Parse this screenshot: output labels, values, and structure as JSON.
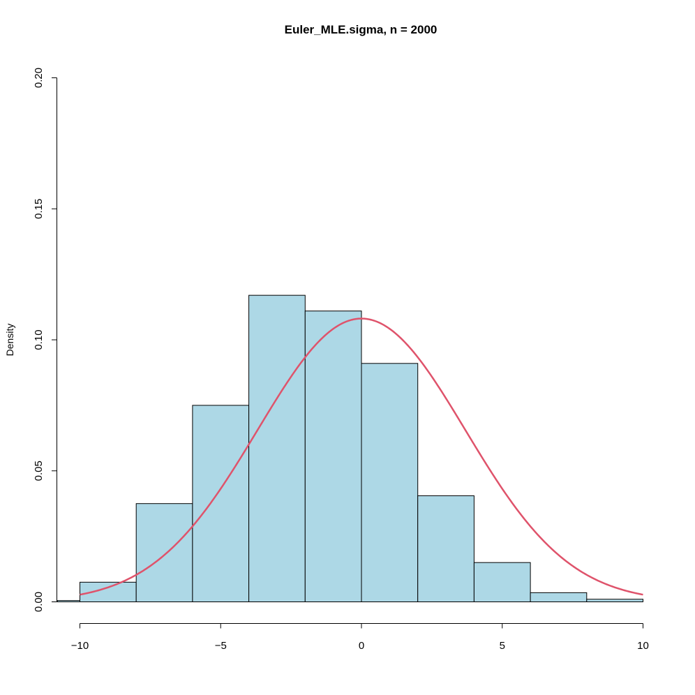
{
  "chart_data": {
    "type": "bar",
    "subtype": "histogram",
    "title": "Euler_MLE.sigma, n = 2000",
    "xlabel": "",
    "ylabel": "Density",
    "xlim": [
      -10.8,
      10
    ],
    "ylim": [
      0,
      0.2
    ],
    "x_ticks": [
      -10,
      -5,
      0,
      5,
      10
    ],
    "x_tick_labels": [
      "−10",
      "−5",
      "0",
      "5",
      "10"
    ],
    "y_ticks": [
      0,
      0.05,
      0.1,
      0.15,
      0.2
    ],
    "y_tick_labels": [
      "0.00",
      "0.05",
      "0.10",
      "0.15",
      "0.20"
    ],
    "bins": [
      {
        "x0": -12,
        "x1": -10,
        "density": 0.0005
      },
      {
        "x0": -10,
        "x1": -8,
        "density": 0.0075
      },
      {
        "x0": -8,
        "x1": -6,
        "density": 0.0375
      },
      {
        "x0": -6,
        "x1": -4,
        "density": 0.075
      },
      {
        "x0": -4,
        "x1": -2,
        "density": 0.117
      },
      {
        "x0": -2,
        "x1": 0,
        "density": 0.111
      },
      {
        "x0": 0,
        "x1": 2,
        "density": 0.091
      },
      {
        "x0": 2,
        "x1": 4,
        "density": 0.0405
      },
      {
        "x0": 4,
        "x1": 6,
        "density": 0.015
      },
      {
        "x0": 6,
        "x1": 8,
        "density": 0.0035
      },
      {
        "x0": 8,
        "x1": 10,
        "density": 0.001
      }
    ],
    "density_curve": {
      "type": "normal",
      "mean": 0,
      "sd": 3.69
    },
    "grid": false,
    "colors": {
      "bar_fill": "#add8e6",
      "bar_stroke": "#000000",
      "curve": "#df536b"
    }
  }
}
